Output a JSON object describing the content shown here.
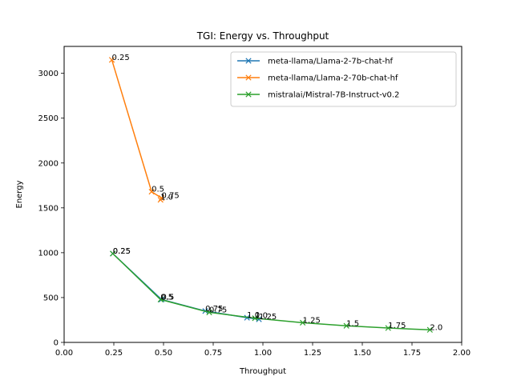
{
  "chart_data": {
    "type": "line",
    "title": "TGI: Energy vs. Throughput",
    "xlabel": "Throughput",
    "ylabel": "Energy",
    "xlim": [
      0.0,
      2.0
    ],
    "ylim": [
      0,
      3300
    ],
    "xticks": [
      "0.00",
      "0.25",
      "0.50",
      "0.75",
      "1.00",
      "1.25",
      "1.50",
      "1.75",
      "2.00"
    ],
    "yticks": [
      "0",
      "500",
      "1000",
      "1500",
      "2000",
      "2500",
      "3000"
    ],
    "grid": false,
    "legend_position": "top-right",
    "marker": "x",
    "series": [
      {
        "name": "meta-llama/Llama-2-7b-chat-hf",
        "color": "#1f77b4",
        "points": [
          {
            "x": 0.245,
            "y": 990,
            "label": "0.25"
          },
          {
            "x": 0.49,
            "y": 478,
            "label": "0.5"
          },
          {
            "x": 0.71,
            "y": 350,
            "label": "0.75"
          },
          {
            "x": 0.92,
            "y": 275,
            "label": "1.0"
          },
          {
            "x": 0.98,
            "y": 258,
            "label": "1.25"
          }
        ]
      },
      {
        "name": "meta-llama/Llama-2-70b-chat-hf",
        "color": "#ff7f0e",
        "points": [
          {
            "x": 0.24,
            "y": 3150,
            "label": "0.25"
          },
          {
            "x": 0.44,
            "y": 1680,
            "label": "0.5"
          },
          {
            "x": 0.49,
            "y": 1610,
            "label": "0.75"
          },
          {
            "x": 0.485,
            "y": 1590,
            "label": "1.0"
          }
        ]
      },
      {
        "name": "mistralai/Mistral-7B-Instruct-v0.2",
        "color": "#2ca02c",
        "points": [
          {
            "x": 0.245,
            "y": 990,
            "label": "0.25"
          },
          {
            "x": 0.485,
            "y": 478,
            "label": "0.5"
          },
          {
            "x": 0.73,
            "y": 335,
            "label": "0.75"
          },
          {
            "x": 0.96,
            "y": 270,
            "label": "1.0"
          },
          {
            "x": 1.2,
            "y": 220,
            "label": "1.25"
          },
          {
            "x": 1.42,
            "y": 185,
            "label": "1.5"
          },
          {
            "x": 1.63,
            "y": 160,
            "label": "1.75"
          },
          {
            "x": 1.84,
            "y": 140,
            "label": "2.0"
          }
        ]
      }
    ]
  }
}
